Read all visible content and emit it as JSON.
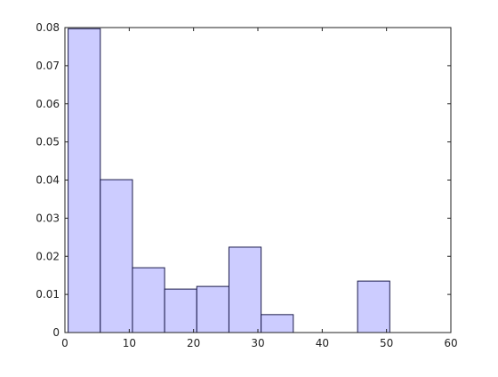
{
  "chart_data": {
    "type": "histogram",
    "bins": [
      0.5,
      5.5,
      10.5,
      15.5,
      20.5,
      25.5,
      30.5,
      35.5,
      40.5,
      45.5,
      50.5
    ],
    "values": [
      0.0797,
      0.0401,
      0.017,
      0.0114,
      0.0121,
      0.0224,
      0.0047,
      0,
      0,
      0.0135
    ],
    "color": "#ccccff",
    "edgecolor": "#1a1a4a",
    "xlim": [
      0,
      60
    ],
    "xticks": [
      0,
      10,
      20,
      30,
      40,
      50,
      60
    ],
    "ylim": [
      0,
      0.08
    ],
    "yticks": [
      0,
      0.01,
      0.02,
      0.03,
      0.04,
      0.05,
      0.06,
      0.07,
      0.08
    ],
    "grid": false
  }
}
